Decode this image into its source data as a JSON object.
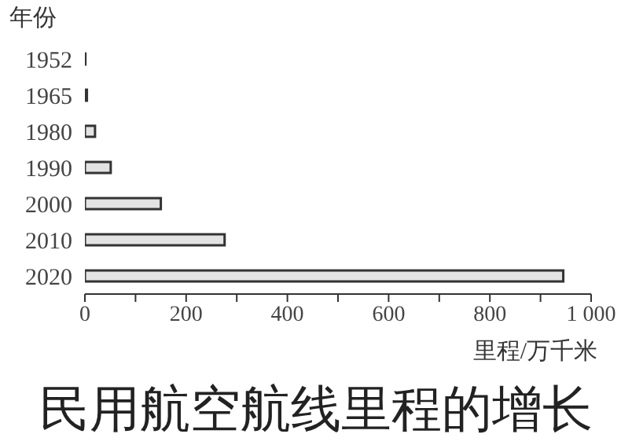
{
  "chart_data": {
    "type": "bar",
    "orientation": "horizontal",
    "title": "民用航空航线里程的增长",
    "ylabel": "年份",
    "xlabel": "里程/万千米",
    "categories": [
      "1952",
      "1965",
      "1980",
      "1990",
      "2000",
      "2010",
      "2020"
    ],
    "values": [
      1,
      4,
      20,
      51,
      150,
      276,
      945
    ],
    "color": "#e3e3e3",
    "xlim": [
      0,
      1000
    ],
    "xticks": [
      0,
      {
        "value": 100,
        "label": null
      },
      200,
      {
        "value": 300,
        "label": null
      },
      400,
      {
        "value": 500,
        "label": null
      },
      600,
      {
        "value": 700,
        "label": null
      },
      800,
      {
        "value": 900,
        "label": null
      },
      {
        "value": 1000,
        "label": "1 000"
      }
    ],
    "grid": false,
    "legend": false
  }
}
